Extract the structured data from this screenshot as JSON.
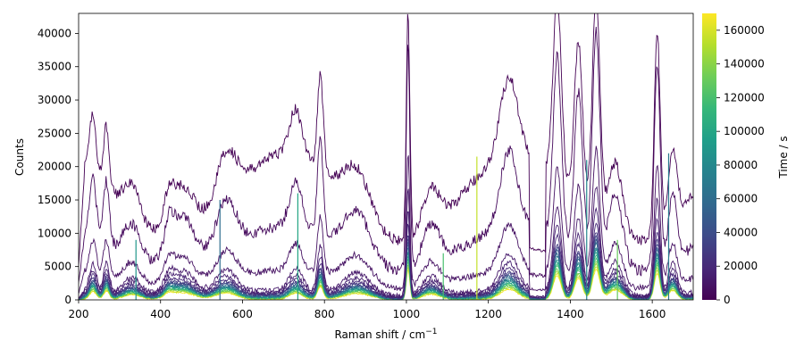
{
  "chart_data": {
    "type": "line",
    "title": "",
    "xlabel": "Raman shift / cm",
    "xlabel_superscript": "−1",
    "ylabel": "Counts",
    "xlim": [
      200,
      1700
    ],
    "ylim": [
      0,
      43000
    ],
    "xticks": [
      200,
      400,
      600,
      800,
      1000,
      1200,
      1400,
      1600
    ],
    "yticks": [
      0,
      5000,
      10000,
      15000,
      20000,
      25000,
      30000,
      35000,
      40000
    ],
    "grid": false,
    "colorbar": {
      "label": "Time / s",
      "colormap": "viridis",
      "range": [
        0,
        170000
      ],
      "ticks": [
        0,
        20000,
        40000,
        60000,
        80000,
        100000,
        120000,
        140000,
        160000
      ]
    },
    "peaks": [
      {
        "c": 235,
        "w": 12,
        "h": 0.26
      },
      {
        "c": 268,
        "w": 10,
        "h": 0.28
      },
      {
        "c": 330,
        "w": 30,
        "h": 0.16
      },
      {
        "c": 420,
        "w": 14,
        "h": 0.1
      },
      {
        "c": 450,
        "w": 45,
        "h": 0.24
      },
      {
        "c": 560,
        "w": 35,
        "h": 0.22
      },
      {
        "c": 730,
        "w": 22,
        "h": 0.2
      },
      {
        "c": 790,
        "w": 10,
        "h": 0.42
      },
      {
        "c": 880,
        "w": 45,
        "h": 0.2
      },
      {
        "c": 1004,
        "w": 6,
        "h": 1.0
      },
      {
        "c": 1060,
        "w": 30,
        "h": 0.18
      },
      {
        "c": 1250,
        "w": 30,
        "h": 0.34
      },
      {
        "c": 1368,
        "w": 14,
        "h": 0.8
      },
      {
        "c": 1420,
        "w": 14,
        "h": 0.7
      },
      {
        "c": 1463,
        "w": 13,
        "h": 1.0
      },
      {
        "c": 1510,
        "w": 25,
        "h": 0.32
      },
      {
        "c": 1612,
        "w": 10,
        "h": 0.9
      },
      {
        "c": 1650,
        "w": 15,
        "h": 0.3
      }
    ],
    "series": [
      {
        "time": 0,
        "scale": 34000,
        "base": 22000
      },
      {
        "time": 4000,
        "scale": 34000,
        "base": 11000
      },
      {
        "time": 8000,
        "scale": 20000,
        "base": 4500
      },
      {
        "time": 12000,
        "scale": 16000,
        "base": 1500
      },
      {
        "time": 16000,
        "scale": 13000,
        "base": 1200
      },
      {
        "time": 20000,
        "scale": 11000,
        "base": 1000
      },
      {
        "time": 28000,
        "scale": 9500,
        "base": 900
      },
      {
        "time": 36000,
        "scale": 9000,
        "base": 800
      },
      {
        "time": 48000,
        "scale": 8500,
        "base": 700
      },
      {
        "time": 60000,
        "scale": 8000,
        "base": 600
      },
      {
        "time": 72000,
        "scale": 7600,
        "base": 500
      },
      {
        "time": 84000,
        "scale": 7200,
        "base": 450
      },
      {
        "time": 96000,
        "scale": 6800,
        "base": 400
      },
      {
        "time": 108000,
        "scale": 6400,
        "base": 350
      },
      {
        "time": 120000,
        "scale": 6000,
        "base": 300
      },
      {
        "time": 132000,
        "scale": 5600,
        "base": 250
      },
      {
        "time": 144000,
        "scale": 5200,
        "base": 200
      },
      {
        "time": 156000,
        "scale": 4800,
        "base": 150
      },
      {
        "time": 168000,
        "scale": 4400,
        "base": 100
      }
    ],
    "spikes": [
      {
        "x": 340,
        "y": 9000,
        "time": 90000
      },
      {
        "x": 545,
        "y": 15000,
        "time": 60000
      },
      {
        "x": 735,
        "y": 16000,
        "time": 100000
      },
      {
        "x": 1172,
        "y": 21500,
        "time": 155000
      },
      {
        "x": 1090,
        "y": 7000,
        "time": 120000
      },
      {
        "x": 1440,
        "y": 21000,
        "time": 80000
      },
      {
        "x": 1515,
        "y": 9000,
        "time": 130000
      },
      {
        "x": 1640,
        "y": 22000,
        "time": 70000
      }
    ]
  }
}
